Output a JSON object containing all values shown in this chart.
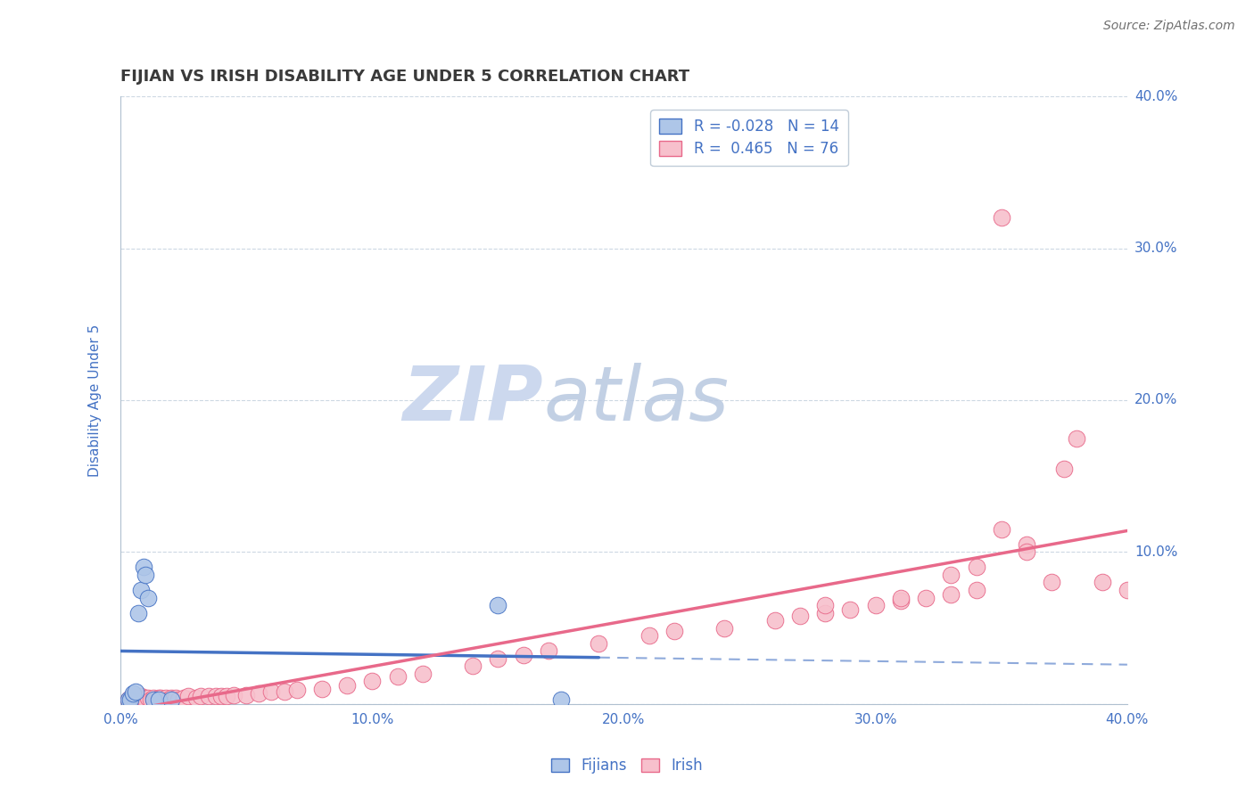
{
  "title": "FIJIAN VS IRISH DISABILITY AGE UNDER 5 CORRELATION CHART",
  "source_text": "Source: ZipAtlas.com",
  "ylabel": "Disability Age Under 5",
  "xlim": [
    0.0,
    0.4
  ],
  "ylim": [
    0.0,
    0.4
  ],
  "fijian_fill_color": "#aec6e8",
  "fijian_edge_color": "#4472C4",
  "irish_fill_color": "#f7c0cc",
  "irish_edge_color": "#e8698a",
  "fijian_line_color": "#4472C4",
  "irish_line_color": "#e8698a",
  "fijian_R": -0.028,
  "fijian_N": 14,
  "irish_R": 0.465,
  "irish_N": 76,
  "title_color": "#3a3a3a",
  "tick_color": "#4472C4",
  "background_color": "#ffffff",
  "grid_color": "#b8c8d8",
  "fijian_x": [
    0.003,
    0.004,
    0.005,
    0.006,
    0.007,
    0.008,
    0.009,
    0.01,
    0.011,
    0.013,
    0.015,
    0.02,
    0.15,
    0.175
  ],
  "fijian_y": [
    0.003,
    0.003,
    0.007,
    0.008,
    0.06,
    0.075,
    0.09,
    0.085,
    0.07,
    0.003,
    0.003,
    0.003,
    0.065,
    0.003
  ],
  "irish_x": [
    0.003,
    0.004,
    0.005,
    0.005,
    0.006,
    0.006,
    0.007,
    0.007,
    0.008,
    0.008,
    0.009,
    0.01,
    0.01,
    0.011,
    0.012,
    0.013,
    0.014,
    0.015,
    0.015,
    0.016,
    0.017,
    0.018,
    0.019,
    0.02,
    0.021,
    0.022,
    0.023,
    0.025,
    0.027,
    0.03,
    0.032,
    0.035,
    0.038,
    0.04,
    0.042,
    0.045,
    0.05,
    0.055,
    0.06,
    0.065,
    0.07,
    0.08,
    0.09,
    0.1,
    0.11,
    0.12,
    0.14,
    0.15,
    0.16,
    0.17,
    0.19,
    0.21,
    0.22,
    0.24,
    0.26,
    0.27,
    0.28,
    0.29,
    0.3,
    0.31,
    0.32,
    0.33,
    0.34,
    0.35,
    0.36,
    0.37,
    0.38,
    0.39,
    0.4,
    0.28,
    0.31,
    0.34,
    0.35,
    0.375,
    0.36,
    0.33
  ],
  "irish_y": [
    0.003,
    0.004,
    0.003,
    0.005,
    0.003,
    0.004,
    0.003,
    0.004,
    0.003,
    0.005,
    0.003,
    0.004,
    0.003,
    0.004,
    0.003,
    0.004,
    0.003,
    0.003,
    0.004,
    0.004,
    0.003,
    0.004,
    0.003,
    0.004,
    0.003,
    0.004,
    0.003,
    0.004,
    0.005,
    0.004,
    0.005,
    0.005,
    0.005,
    0.005,
    0.005,
    0.006,
    0.006,
    0.007,
    0.008,
    0.008,
    0.009,
    0.01,
    0.012,
    0.015,
    0.018,
    0.02,
    0.025,
    0.03,
    0.032,
    0.035,
    0.04,
    0.045,
    0.048,
    0.05,
    0.055,
    0.058,
    0.06,
    0.062,
    0.065,
    0.068,
    0.07,
    0.072,
    0.075,
    0.32,
    0.105,
    0.08,
    0.175,
    0.08,
    0.075,
    0.065,
    0.07,
    0.09,
    0.115,
    0.155,
    0.1,
    0.085
  ]
}
